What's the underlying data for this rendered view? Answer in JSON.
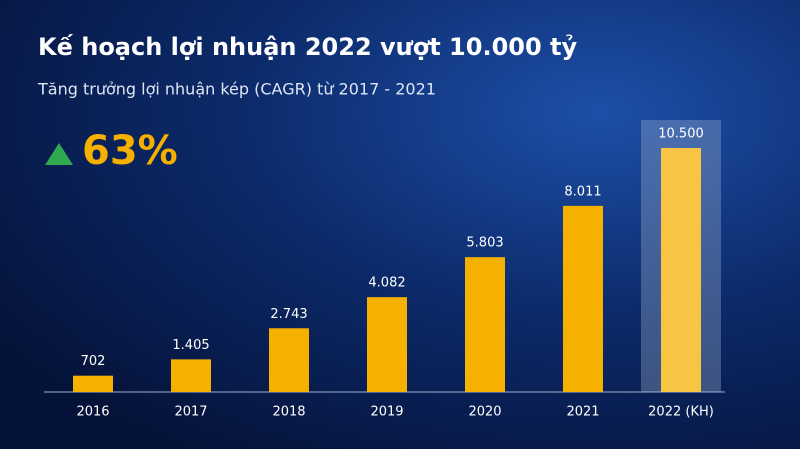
{
  "chart_data": {
    "type": "bar",
    "title": "Kế hoạch lợi nhuận 2022 vượt 10.000 tỷ",
    "subtitle": "Tăng trưởng lợi nhuận kép (CAGR) từ 2017 - 2021",
    "annotation": "63%",
    "categories": [
      "2016",
      "2017",
      "2018",
      "2019",
      "2020",
      "2021",
      "2022 (KH)"
    ],
    "values": [
      702,
      1405,
      2743,
      4082,
      5803,
      8011,
      10500
    ],
    "value_labels": [
      "702",
      "1.405",
      "2.743",
      "4.082",
      "5.803",
      "8.011",
      "10.500"
    ],
    "colors": [
      "#f5b000",
      "#f5b000",
      "#f5b000",
      "#f5b000",
      "#f5b000",
      "#f5b000",
      "#f7c443"
    ]
  }
}
